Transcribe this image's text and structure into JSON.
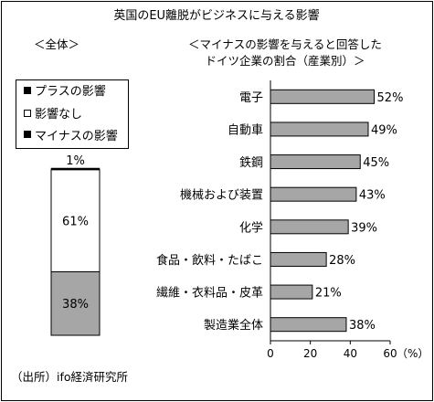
{
  "title": "英国のEU離脱がビジネスに与える影響",
  "source_note": "（出所）ifo経済研究所",
  "colors": {
    "negative": "#a6a6a6",
    "positive": "#000000",
    "none": "#ffffff",
    "border": "#000000"
  },
  "chart_data": [
    {
      "type": "bar",
      "subtype": "100% stacked column",
      "title": "＜全体＞",
      "legend": {
        "position": "top-left",
        "entries": [
          "プラスの影響",
          "影響なし",
          "マイナスの影響"
        ]
      },
      "series": [
        {
          "name": "マイナスの影響",
          "values": [
            38
          ],
          "label": "38%"
        },
        {
          "name": "影響なし",
          "values": [
            61
          ],
          "label": "61%"
        },
        {
          "name": "プラスの影響",
          "values": [
            1
          ],
          "label": "1%"
        }
      ]
    },
    {
      "type": "bar",
      "orientation": "horizontal",
      "title": "＜マイナスの影響を与えると回答した",
      "subtitle": "ドイツ企業の割合（産業別）＞",
      "categories": [
        "電子",
        "自動車",
        "鉄鋼",
        "機械および装置",
        "化学",
        "食品・飲料・たばこ",
        "繊維・衣料品・皮革",
        "製造業全体"
      ],
      "values": [
        52,
        49,
        45,
        43,
        39,
        28,
        21,
        38
      ],
      "value_labels": [
        "52%",
        "49%",
        "45%",
        "43%",
        "39%",
        "28%",
        "21%",
        "38%"
      ],
      "xlim": [
        0,
        60
      ],
      "xticks": [
        "0",
        "20",
        "40",
        "60"
      ],
      "xunit": "（%）",
      "grid": false
    }
  ]
}
